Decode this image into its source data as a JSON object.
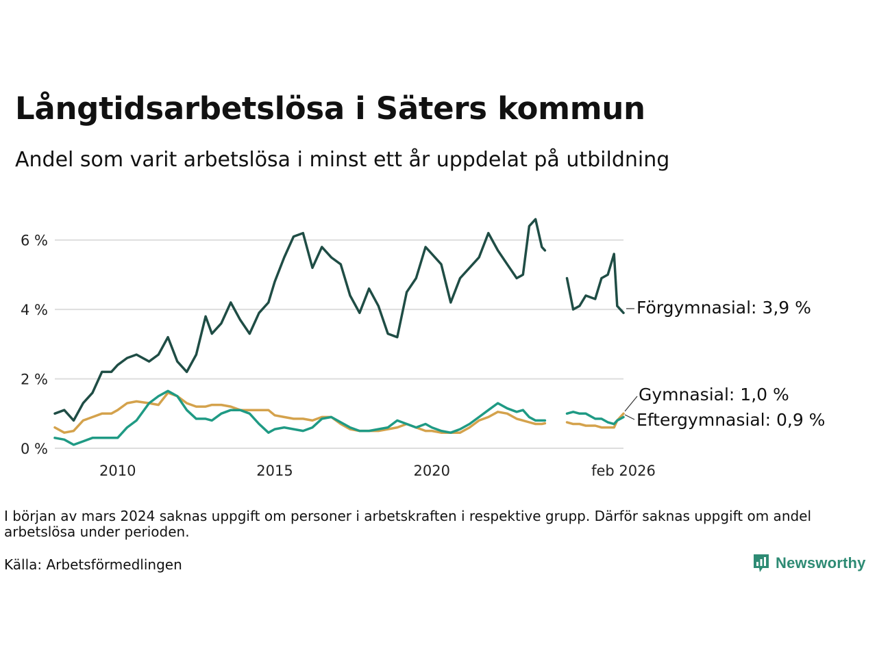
{
  "header": {
    "title": "Långtidsarbetslösa i Säters kommun",
    "subtitle": "Andel som varit arbetslösa i minst ett år uppdelat på utbildning"
  },
  "footer": {
    "note": "I början av mars 2024 saknas uppgift om personer i arbetskraften i respektive grupp. Därför saknas uppgift om andel arbetslösa under perioden.",
    "source": "Källa: Arbetsförmedlingen",
    "brand": "Newsworthy"
  },
  "colors": {
    "forgymnasial": "#1f4d45",
    "gymnasial": "#d4a24c",
    "eftergymnasial": "#1f9a84",
    "grid": "#dddddd",
    "brand": "#2e8b74"
  },
  "chart_data": {
    "type": "line",
    "x_label_values": [
      "2010",
      "2015",
      "2020",
      "feb 2026"
    ],
    "y_tick_labels": [
      "0 %",
      "2 %",
      "4 %",
      "6 %"
    ],
    "y_ticks": [
      0,
      2,
      4,
      6
    ],
    "ylim": [
      0,
      7
    ],
    "xlim": [
      2008.0,
      2026.1
    ],
    "x_ticks": [
      2010,
      2015,
      2020,
      2026.1
    ],
    "gap": [
      2023.6,
      2024.3
    ],
    "series": [
      {
        "name": "Förgymnasial",
        "end_label": "Förgymnasial: 3,9 %",
        "color_key": "forgymnasial",
        "points": [
          [
            2008.0,
            1.0
          ],
          [
            2008.3,
            1.1
          ],
          [
            2008.6,
            0.8
          ],
          [
            2008.9,
            1.3
          ],
          [
            2009.2,
            1.6
          ],
          [
            2009.5,
            2.2
          ],
          [
            2009.8,
            2.2
          ],
          [
            2010.0,
            2.4
          ],
          [
            2010.3,
            2.6
          ],
          [
            2010.6,
            2.7
          ],
          [
            2011.0,
            2.5
          ],
          [
            2011.3,
            2.7
          ],
          [
            2011.6,
            3.2
          ],
          [
            2011.9,
            2.5
          ],
          [
            2012.2,
            2.2
          ],
          [
            2012.5,
            2.7
          ],
          [
            2012.8,
            3.8
          ],
          [
            2013.0,
            3.3
          ],
          [
            2013.3,
            3.6
          ],
          [
            2013.6,
            4.2
          ],
          [
            2013.9,
            3.7
          ],
          [
            2014.2,
            3.3
          ],
          [
            2014.5,
            3.9
          ],
          [
            2014.8,
            4.2
          ],
          [
            2015.0,
            4.8
          ],
          [
            2015.3,
            5.5
          ],
          [
            2015.6,
            6.1
          ],
          [
            2015.9,
            6.2
          ],
          [
            2016.2,
            5.2
          ],
          [
            2016.5,
            5.8
          ],
          [
            2016.8,
            5.5
          ],
          [
            2017.1,
            5.3
          ],
          [
            2017.4,
            4.4
          ],
          [
            2017.7,
            3.9
          ],
          [
            2018.0,
            4.6
          ],
          [
            2018.3,
            4.1
          ],
          [
            2018.6,
            3.3
          ],
          [
            2018.9,
            3.2
          ],
          [
            2019.2,
            4.5
          ],
          [
            2019.5,
            4.9
          ],
          [
            2019.8,
            5.8
          ],
          [
            2020.0,
            5.6
          ],
          [
            2020.3,
            5.3
          ],
          [
            2020.6,
            4.2
          ],
          [
            2020.9,
            4.9
          ],
          [
            2021.2,
            5.2
          ],
          [
            2021.5,
            5.5
          ],
          [
            2021.8,
            6.2
          ],
          [
            2022.1,
            5.7
          ],
          [
            2022.4,
            5.3
          ],
          [
            2022.7,
            4.9
          ],
          [
            2022.9,
            5.0
          ],
          [
            2023.1,
            6.4
          ],
          [
            2023.3,
            6.6
          ],
          [
            2023.5,
            5.8
          ],
          [
            2023.6,
            5.7
          ],
          [
            2024.3,
            4.9
          ],
          [
            2024.5,
            4.0
          ],
          [
            2024.7,
            4.1
          ],
          [
            2024.9,
            4.4
          ],
          [
            2025.2,
            4.3
          ],
          [
            2025.4,
            4.9
          ],
          [
            2025.6,
            5.0
          ],
          [
            2025.8,
            5.6
          ],
          [
            2025.9,
            4.1
          ],
          [
            2026.1,
            3.9
          ]
        ]
      },
      {
        "name": "Gymnasial",
        "end_label": "Gymnasial: 1,0 %",
        "color_key": "gymnasial",
        "points": [
          [
            2008.0,
            0.6
          ],
          [
            2008.3,
            0.45
          ],
          [
            2008.6,
            0.5
          ],
          [
            2008.9,
            0.8
          ],
          [
            2009.2,
            0.9
          ],
          [
            2009.5,
            1.0
          ],
          [
            2009.8,
            1.0
          ],
          [
            2010.0,
            1.1
          ],
          [
            2010.3,
            1.3
          ],
          [
            2010.6,
            1.35
          ],
          [
            2011.0,
            1.3
          ],
          [
            2011.3,
            1.25
          ],
          [
            2011.6,
            1.6
          ],
          [
            2011.9,
            1.5
          ],
          [
            2012.2,
            1.3
          ],
          [
            2012.5,
            1.2
          ],
          [
            2012.8,
            1.2
          ],
          [
            2013.0,
            1.25
          ],
          [
            2013.3,
            1.25
          ],
          [
            2013.6,
            1.2
          ],
          [
            2013.9,
            1.1
          ],
          [
            2014.2,
            1.1
          ],
          [
            2014.5,
            1.1
          ],
          [
            2014.8,
            1.1
          ],
          [
            2015.0,
            0.95
          ],
          [
            2015.3,
            0.9
          ],
          [
            2015.6,
            0.85
          ],
          [
            2015.9,
            0.85
          ],
          [
            2016.2,
            0.8
          ],
          [
            2016.5,
            0.9
          ],
          [
            2016.8,
            0.9
          ],
          [
            2017.1,
            0.7
          ],
          [
            2017.4,
            0.55
          ],
          [
            2017.7,
            0.5
          ],
          [
            2018.0,
            0.5
          ],
          [
            2018.3,
            0.5
          ],
          [
            2018.6,
            0.55
          ],
          [
            2018.9,
            0.6
          ],
          [
            2019.2,
            0.7
          ],
          [
            2019.5,
            0.6
          ],
          [
            2019.8,
            0.5
          ],
          [
            2020.0,
            0.5
          ],
          [
            2020.3,
            0.45
          ],
          [
            2020.6,
            0.45
          ],
          [
            2020.9,
            0.45
          ],
          [
            2021.2,
            0.6
          ],
          [
            2021.5,
            0.8
          ],
          [
            2021.8,
            0.9
          ],
          [
            2022.1,
            1.05
          ],
          [
            2022.4,
            1.0
          ],
          [
            2022.7,
            0.85
          ],
          [
            2022.9,
            0.8
          ],
          [
            2023.1,
            0.75
          ],
          [
            2023.3,
            0.7
          ],
          [
            2023.5,
            0.7
          ],
          [
            2023.6,
            0.72
          ],
          [
            2024.3,
            0.75
          ],
          [
            2024.5,
            0.7
          ],
          [
            2024.7,
            0.7
          ],
          [
            2024.9,
            0.65
          ],
          [
            2025.2,
            0.65
          ],
          [
            2025.4,
            0.6
          ],
          [
            2025.6,
            0.6
          ],
          [
            2025.8,
            0.6
          ],
          [
            2025.9,
            0.8
          ],
          [
            2026.1,
            1.0
          ]
        ]
      },
      {
        "name": "Eftergymnasial",
        "end_label": "Eftergymnasial: 0,9 %",
        "color_key": "eftergymnasial",
        "points": [
          [
            2008.0,
            0.3
          ],
          [
            2008.3,
            0.25
          ],
          [
            2008.6,
            0.1
          ],
          [
            2008.9,
            0.2
          ],
          [
            2009.2,
            0.3
          ],
          [
            2009.5,
            0.3
          ],
          [
            2009.8,
            0.3
          ],
          [
            2010.0,
            0.3
          ],
          [
            2010.3,
            0.6
          ],
          [
            2010.6,
            0.8
          ],
          [
            2011.0,
            1.3
          ],
          [
            2011.3,
            1.5
          ],
          [
            2011.6,
            1.65
          ],
          [
            2011.9,
            1.5
          ],
          [
            2012.2,
            1.1
          ],
          [
            2012.5,
            0.85
          ],
          [
            2012.8,
            0.85
          ],
          [
            2013.0,
            0.8
          ],
          [
            2013.3,
            1.0
          ],
          [
            2013.6,
            1.1
          ],
          [
            2013.9,
            1.1
          ],
          [
            2014.2,
            1.0
          ],
          [
            2014.5,
            0.7
          ],
          [
            2014.8,
            0.45
          ],
          [
            2015.0,
            0.55
          ],
          [
            2015.3,
            0.6
          ],
          [
            2015.6,
            0.55
          ],
          [
            2015.9,
            0.5
          ],
          [
            2016.2,
            0.6
          ],
          [
            2016.5,
            0.85
          ],
          [
            2016.8,
            0.9
          ],
          [
            2017.1,
            0.75
          ],
          [
            2017.4,
            0.6
          ],
          [
            2017.7,
            0.5
          ],
          [
            2018.0,
            0.5
          ],
          [
            2018.3,
            0.55
          ],
          [
            2018.6,
            0.6
          ],
          [
            2018.9,
            0.8
          ],
          [
            2019.2,
            0.7
          ],
          [
            2019.5,
            0.6
          ],
          [
            2019.8,
            0.7
          ],
          [
            2020.0,
            0.6
          ],
          [
            2020.3,
            0.5
          ],
          [
            2020.6,
            0.45
          ],
          [
            2020.9,
            0.55
          ],
          [
            2021.2,
            0.7
          ],
          [
            2021.5,
            0.9
          ],
          [
            2021.8,
            1.1
          ],
          [
            2022.1,
            1.3
          ],
          [
            2022.4,
            1.15
          ],
          [
            2022.7,
            1.05
          ],
          [
            2022.9,
            1.1
          ],
          [
            2023.1,
            0.9
          ],
          [
            2023.3,
            0.8
          ],
          [
            2023.5,
            0.8
          ],
          [
            2023.6,
            0.8
          ],
          [
            2024.3,
            1.0
          ],
          [
            2024.5,
            1.05
          ],
          [
            2024.7,
            1.0
          ],
          [
            2024.9,
            1.0
          ],
          [
            2025.2,
            0.85
          ],
          [
            2025.4,
            0.85
          ],
          [
            2025.6,
            0.75
          ],
          [
            2025.8,
            0.7
          ],
          [
            2025.9,
            0.8
          ],
          [
            2026.1,
            0.9
          ]
        ]
      }
    ]
  }
}
